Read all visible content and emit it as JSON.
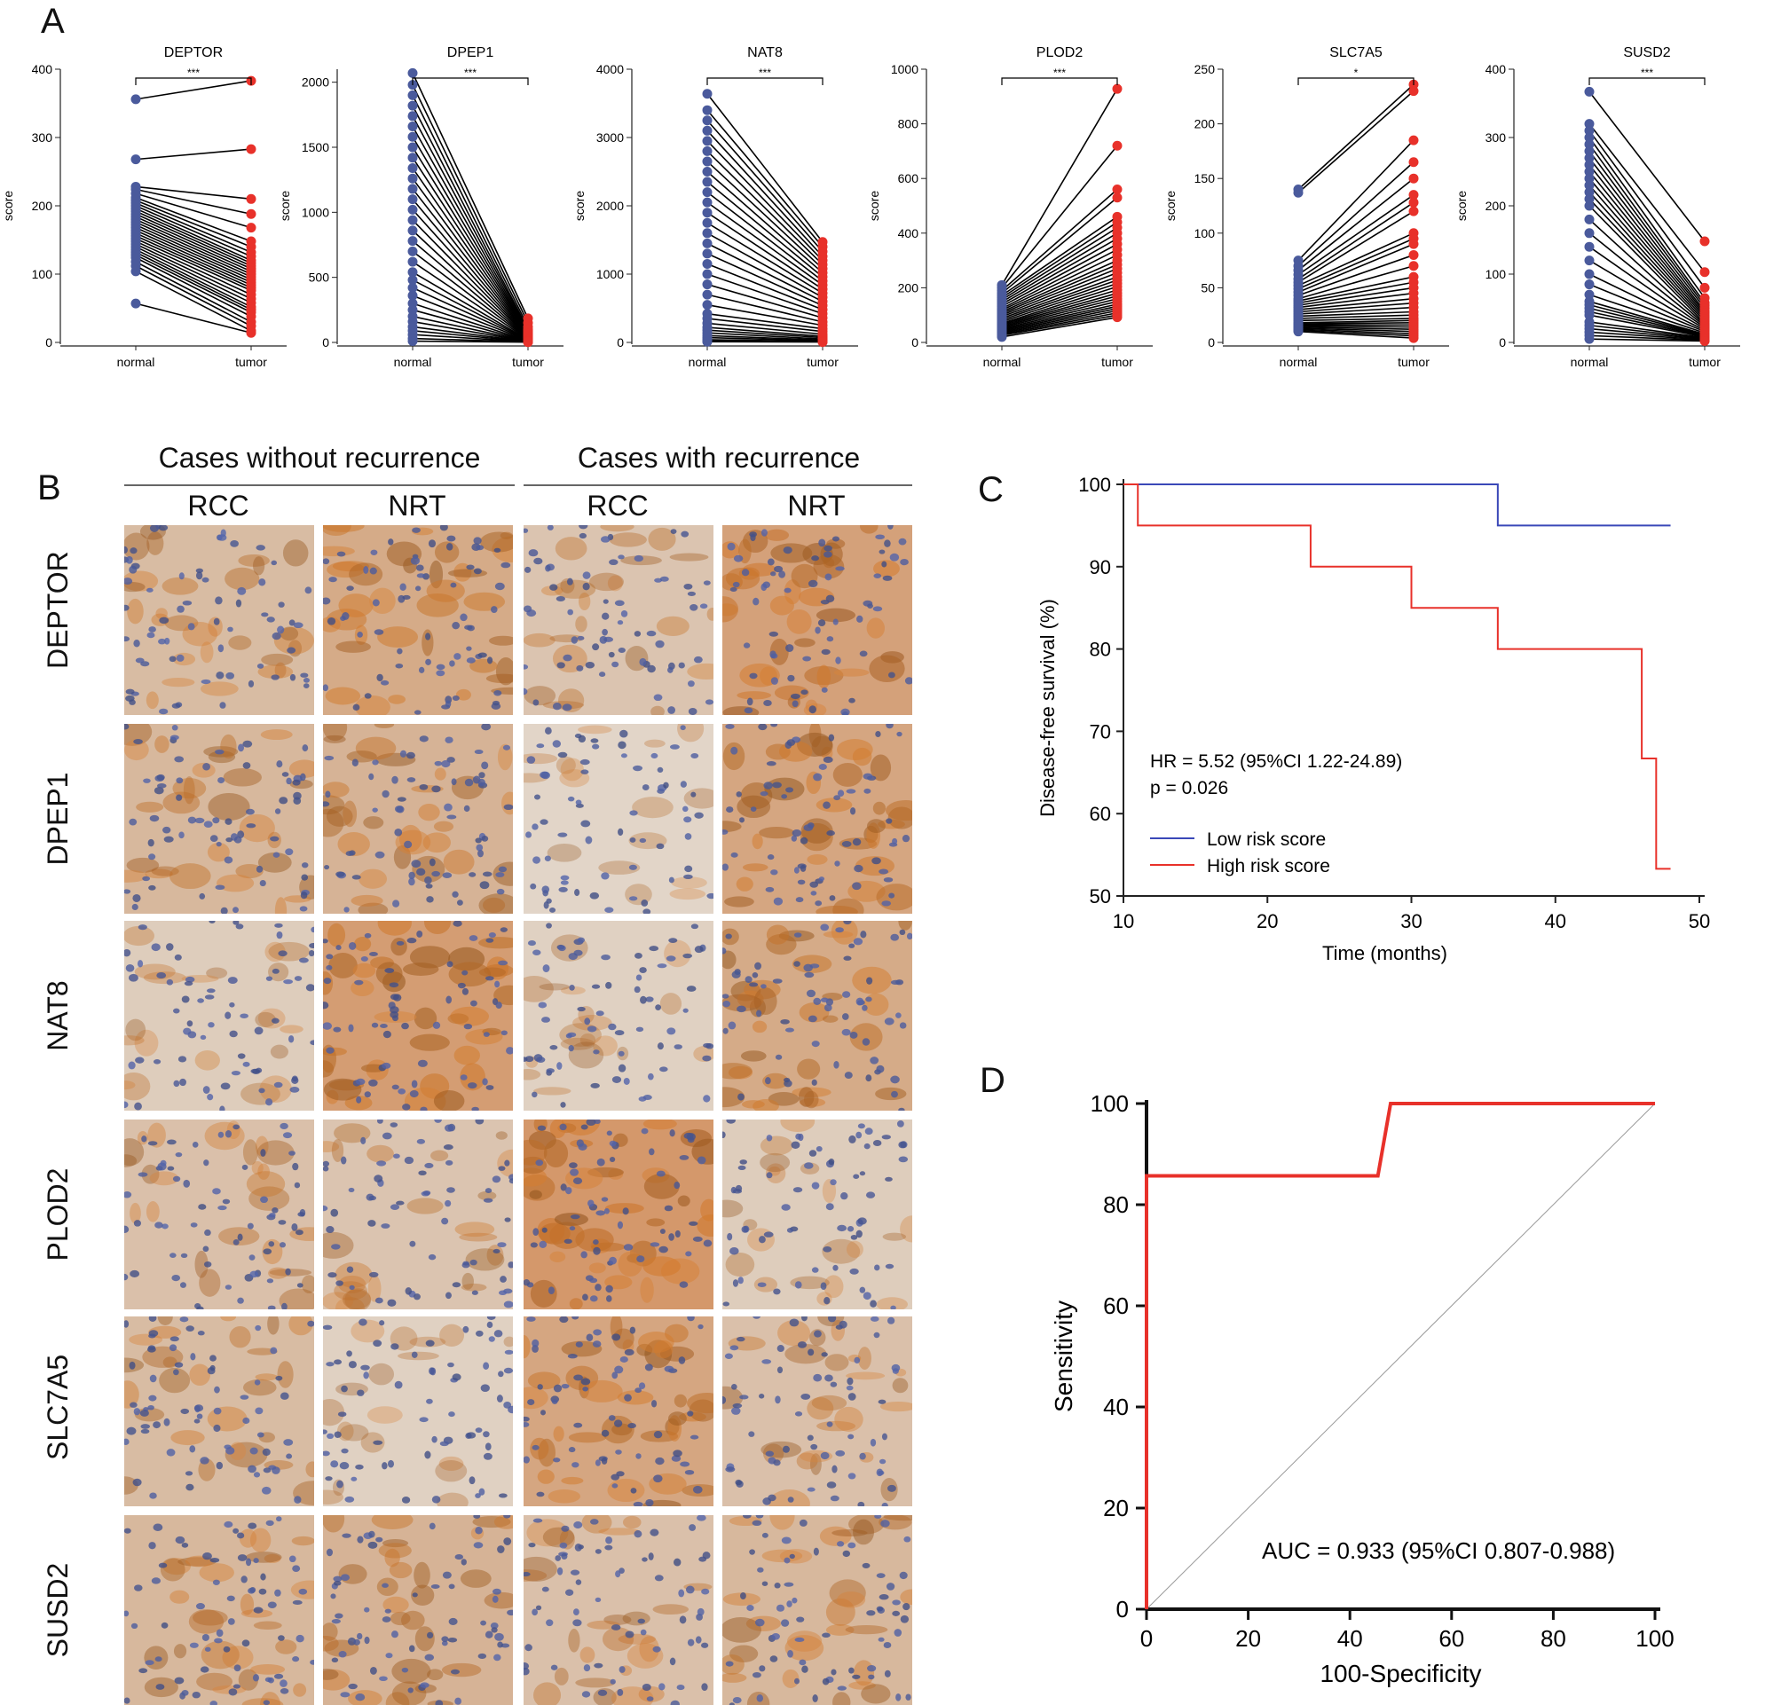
{
  "figure": {
    "letters": {
      "a": "A",
      "b": "B",
      "c": "C",
      "d": "D"
    }
  },
  "panel_a": {
    "x_categories": [
      "normal",
      "tumor"
    ],
    "y_label": "score",
    "charts": [
      {
        "title": "DEPTOR",
        "sig": "***",
        "ylim": [
          0,
          400
        ],
        "yticks": [
          0,
          100,
          200,
          300,
          400
        ],
        "normal": [
          356,
          268,
          228,
          224,
          218,
          212,
          208,
          204,
          200,
          196,
          192,
          188,
          184,
          180,
          176,
          172,
          168,
          164,
          160,
          156,
          152,
          148,
          144,
          140,
          136,
          132,
          128,
          124,
          118,
          112,
          104,
          57
        ],
        "tumor": [
          383,
          283,
          210,
          188,
          168,
          148,
          140,
          132,
          126,
          120,
          116,
          112,
          108,
          104,
          100,
          96,
          92,
          88,
          84,
          80,
          76,
          70,
          64,
          58,
          52,
          48,
          44,
          38,
          30,
          24,
          17,
          14
        ]
      },
      {
        "title": "DPEP1",
        "sig": "***",
        "ylim": [
          0,
          2100
        ],
        "yticks": [
          0,
          500,
          1000,
          1500,
          2000
        ],
        "normal": [
          2070,
          1980,
          1900,
          1820,
          1740,
          1660,
          1580,
          1500,
          1420,
          1340,
          1260,
          1180,
          1100,
          1020,
          940,
          860,
          780,
          700,
          620,
          540,
          480,
          420,
          360,
          300,
          250,
          200,
          160,
          120,
          90,
          60,
          30,
          10
        ],
        "tumor": [
          185,
          150,
          120,
          100,
          90,
          80,
          72,
          66,
          60,
          55,
          50,
          46,
          42,
          38,
          35,
          32,
          29,
          26,
          23,
          20,
          18,
          16,
          14,
          12,
          10,
          9,
          8,
          7,
          6,
          5,
          4,
          2
        ]
      },
      {
        "title": "NAT8",
        "sig": "***",
        "ylim": [
          0,
          4000
        ],
        "yticks": [
          0,
          1000,
          2000,
          3000,
          4000
        ],
        "normal": [
          3640,
          3400,
          3250,
          3100,
          2950,
          2800,
          2650,
          2500,
          2350,
          2200,
          2050,
          1900,
          1750,
          1600,
          1450,
          1300,
          1150,
          1000,
          850,
          700,
          550,
          420,
          350,
          280,
          220,
          180,
          140,
          100,
          70,
          40,
          20,
          10
        ],
        "tumor": [
          1470,
          1400,
          1330,
          1260,
          1200,
          1140,
          1080,
          1020,
          960,
          900,
          840,
          780,
          720,
          660,
          600,
          540,
          480,
          420,
          360,
          300,
          250,
          200,
          160,
          120,
          90,
          70,
          50,
          35,
          25,
          15,
          10,
          5
        ]
      },
      {
        "title": "PLOD2",
        "sig": "***",
        "ylim": [
          0,
          1000
        ],
        "yticks": [
          0,
          200,
          400,
          600,
          800,
          1000
        ],
        "normal": [
          210,
          200,
          190,
          180,
          172,
          164,
          156,
          148,
          140,
          132,
          124,
          118,
          112,
          106,
          100,
          94,
          88,
          82,
          76,
          70,
          66,
          62,
          58,
          54,
          50,
          46,
          42,
          38,
          34,
          30,
          26,
          20
        ],
        "tumor": [
          928,
          720,
          560,
          530,
          460,
          440,
          420,
          400,
          380,
          360,
          340,
          320,
          300,
          285,
          270,
          255,
          240,
          228,
          216,
          204,
          192,
          180,
          170,
          160,
          150,
          140,
          132,
          124,
          116,
          108,
          100,
          92
        ]
      },
      {
        "title": "SLC7A5",
        "sig": "*",
        "ylim": [
          0,
          250
        ],
        "yticks": [
          0,
          50,
          100,
          150,
          200,
          250
        ],
        "normal": [
          140,
          137,
          75,
          70,
          66,
          62,
          58,
          55,
          52,
          49,
          46,
          43,
          40,
          38,
          36,
          34,
          32,
          30,
          28,
          26,
          24,
          22,
          20,
          18,
          17,
          16,
          15,
          14,
          13,
          12,
          11,
          10
        ],
        "tumor": [
          236,
          230,
          185,
          165,
          150,
          135,
          128,
          120,
          100,
          95,
          90,
          80,
          70,
          60,
          55,
          50,
          45,
          40,
          36,
          32,
          28,
          25,
          22,
          20,
          18,
          16,
          14,
          12,
          10,
          8,
          6,
          4
        ]
      },
      {
        "title": "SUSD2",
        "sig": "***",
        "ylim": [
          0,
          400
        ],
        "yticks": [
          0,
          100,
          200,
          300,
          400
        ],
        "normal": [
          367,
          320,
          310,
          300,
          290,
          280,
          270,
          260,
          250,
          240,
          230,
          220,
          210,
          200,
          180,
          160,
          140,
          120,
          100,
          85,
          70,
          60,
          55,
          50,
          45,
          40,
          30,
          25,
          20,
          15,
          10,
          5
        ],
        "tumor": [
          148,
          103,
          80,
          65,
          58,
          54,
          50,
          46,
          43,
          40,
          37,
          34,
          31,
          28,
          26,
          24,
          22,
          20,
          18,
          16,
          14,
          12,
          11,
          10,
          9,
          8,
          7,
          6,
          5,
          4,
          3,
          2
        ]
      }
    ]
  },
  "panel_b": {
    "group_headers": [
      "Cases without recurrence",
      "Cases with recurrence"
    ],
    "column_labels": [
      "RCC",
      "NRT",
      "RCC",
      "NRT"
    ],
    "row_labels": [
      "DEPTOR",
      "DPEP1",
      "NAT8",
      "PLOD2",
      "SLC7A5",
      "SUSD2"
    ],
    "stain_levels": [
      [
        0.45,
        0.65,
        0.35,
        0.75
      ],
      [
        0.5,
        0.55,
        0.15,
        0.7
      ],
      [
        0.25,
        0.8,
        0.2,
        0.65
      ],
      [
        0.4,
        0.35,
        0.85,
        0.25
      ],
      [
        0.45,
        0.2,
        0.7,
        0.4
      ],
      [
        0.5,
        0.55,
        0.4,
        0.5
      ]
    ]
  },
  "panel_c": {
    "chart_data": {
      "type": "line",
      "xlabel": "Time (months)",
      "ylabel": "Disease-free survival (%)",
      "xlim": [
        10,
        50
      ],
      "ylim": [
        50,
        100
      ],
      "xticks": [
        10,
        20,
        30,
        40,
        50
      ],
      "yticks": [
        50,
        60,
        70,
        80,
        90,
        100
      ],
      "annotation_hr": "HR = 5.52 (95%CI 1.22-24.89)",
      "annotation_p": "p = 0.026",
      "series": [
        {
          "name": "Low risk score",
          "color": "#3a48b8",
          "steps": [
            [
              10,
              100
            ],
            [
              36,
              100
            ],
            [
              36,
              95
            ],
            [
              48,
              95
            ]
          ]
        },
        {
          "name": "High risk score",
          "color": "#e8312a",
          "steps": [
            [
              10,
              100
            ],
            [
              11,
              100
            ],
            [
              11,
              95
            ],
            [
              23,
              95
            ],
            [
              23,
              90
            ],
            [
              30,
              90
            ],
            [
              30,
              85
            ],
            [
              36,
              85
            ],
            [
              36,
              80
            ],
            [
              46,
              80
            ],
            [
              46,
              66.7
            ],
            [
              47,
              66.7
            ],
            [
              47,
              53.3
            ],
            [
              48,
              53.3
            ]
          ]
        }
      ]
    }
  },
  "panel_d": {
    "chart_data": {
      "type": "line",
      "xlabel": "100-Specificity",
      "ylabel": "Sensitivity",
      "xlim": [
        0,
        100
      ],
      "ylim": [
        0,
        100
      ],
      "xticks": [
        0,
        20,
        40,
        60,
        80,
        100
      ],
      "yticks": [
        0,
        20,
        40,
        60,
        80,
        100
      ],
      "annotation_auc": "AUC = 0.933 (95%CI 0.807-0.988)",
      "series": [
        {
          "color": "#e8312a",
          "points": [
            [
              0,
              0
            ],
            [
              0,
              85.7
            ],
            [
              45.5,
              85.7
            ],
            [
              48,
              100
            ],
            [
              100,
              100
            ]
          ]
        },
        {
          "color": "#999999",
          "points": [
            [
              0,
              0
            ],
            [
              100,
              100
            ]
          ]
        }
      ]
    }
  }
}
